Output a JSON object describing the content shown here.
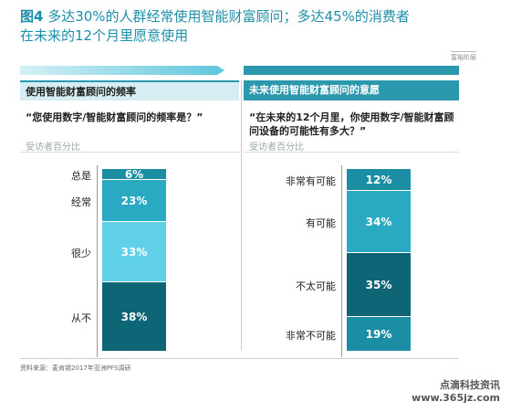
{
  "title": {
    "fig_label": "图4",
    "text_line1": "多达30%的人群经常使用智能财富顾问；多达45%的消费者",
    "text_line2": "在未来的12个月里愿意使用"
  },
  "tag": "富裕阶层",
  "colors": {
    "very_light": "#5fd0e8",
    "light": "#2aa9c2",
    "mid": "#1b8ea4",
    "dark": "#0e6575"
  },
  "chart_data": [
    {
      "type": "bar",
      "stacked": true,
      "title": "使用智能财富顾问的频率",
      "question": "“您使用数字/智能财富顾问的频率是？”",
      "unit_note": "受访者百分比",
      "categories": [
        "总是",
        "经常",
        "很少",
        "从不"
      ],
      "values": [
        6,
        23,
        33,
        38
      ],
      "value_labels": [
        "6%",
        "23%",
        "33%",
        "38%"
      ],
      "segment_colors": [
        "#1b8ea4",
        "#2aa9c2",
        "#5fd0e8",
        "#0e6575"
      ]
    },
    {
      "type": "bar",
      "stacked": true,
      "title": "未来使用智能财富顾问的意愿",
      "question": "“在未来的12个月里，你使用数字/智能财富顾问设备的可能性有多大？”",
      "unit_note": "受访者百分比",
      "categories": [
        "非常有可能",
        "有可能",
        "不太可能",
        "非常不可能"
      ],
      "values": [
        12,
        34,
        35,
        19
      ],
      "value_labels": [
        "12%",
        "34%",
        "35%",
        "19%"
      ],
      "segment_colors": [
        "#1b8ea4",
        "#2aa9c2",
        "#0e6575",
        "#1b8ea4"
      ]
    }
  ],
  "footer": "资料来源：麦肯锡2017年亚洲PFS调研",
  "watermark": {
    "line1": "点滴科技资讯",
    "line2": "www.365jz.com"
  }
}
